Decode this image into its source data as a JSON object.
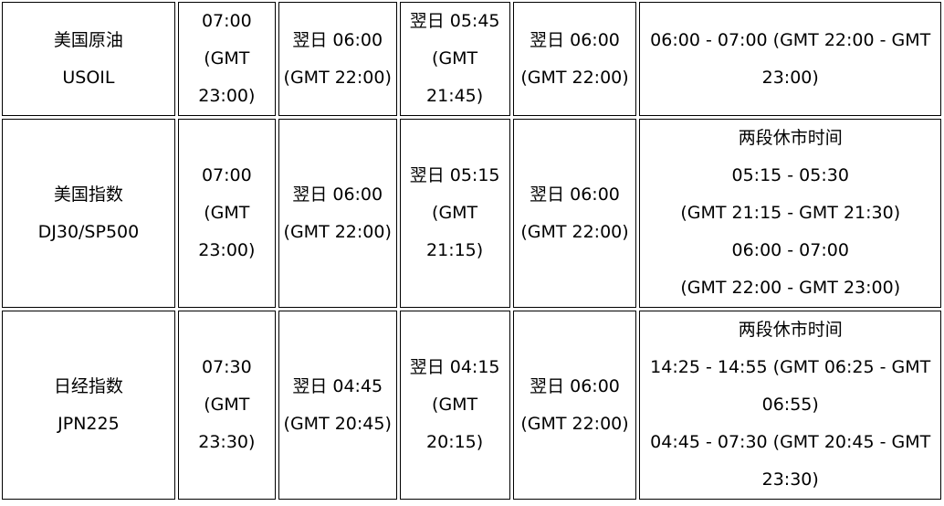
{
  "rows": [
    {
      "product": [
        "美国原油",
        "USOIL"
      ],
      "c2": [
        "07:00",
        "(GMT",
        "23:00)"
      ],
      "c3": [
        "翌日 06:00",
        "(GMT 22:00)"
      ],
      "c4": [
        "翌日 05:45",
        "(GMT",
        "21:45)"
      ],
      "c5": [
        "翌日 06:00",
        "(GMT 22:00)"
      ],
      "c6": [
        "06:00 - 07:00 (GMT 22:00 - GMT",
        "23:00)"
      ]
    },
    {
      "product": [
        "美国指数",
        "DJ30/SP500"
      ],
      "c2": [
        "07:00",
        "(GMT",
        "23:00)"
      ],
      "c3": [
        "翌日 06:00",
        "(GMT 22:00)"
      ],
      "c4": [
        "翌日 05:15",
        "(GMT",
        "21:15)"
      ],
      "c5": [
        "翌日 06:00",
        "(GMT 22:00)"
      ],
      "c6": [
        "两段休市时间",
        "05:15 - 05:30",
        "(GMT 21:15 - GMT 21:30)",
        "06:00 - 07:00",
        "(GMT 22:00 - GMT 23:00)"
      ]
    },
    {
      "product": [
        "日经指数",
        "JPN225"
      ],
      "c2": [
        "07:30",
        "(GMT",
        "23:30)"
      ],
      "c3": [
        "翌日 04:45",
        "(GMT 20:45)"
      ],
      "c4": [
        "翌日 04:15",
        "(GMT",
        "20:15)"
      ],
      "c5": [
        "翌日 06:00",
        "(GMT 22:00)"
      ],
      "c6": [
        "两段休市时间",
        "14:25 - 14:55 (GMT 06:25 - GMT",
        "06:55)",
        "04:45 - 07:30 (GMT 20:45 - GMT",
        "23:30)"
      ]
    }
  ]
}
